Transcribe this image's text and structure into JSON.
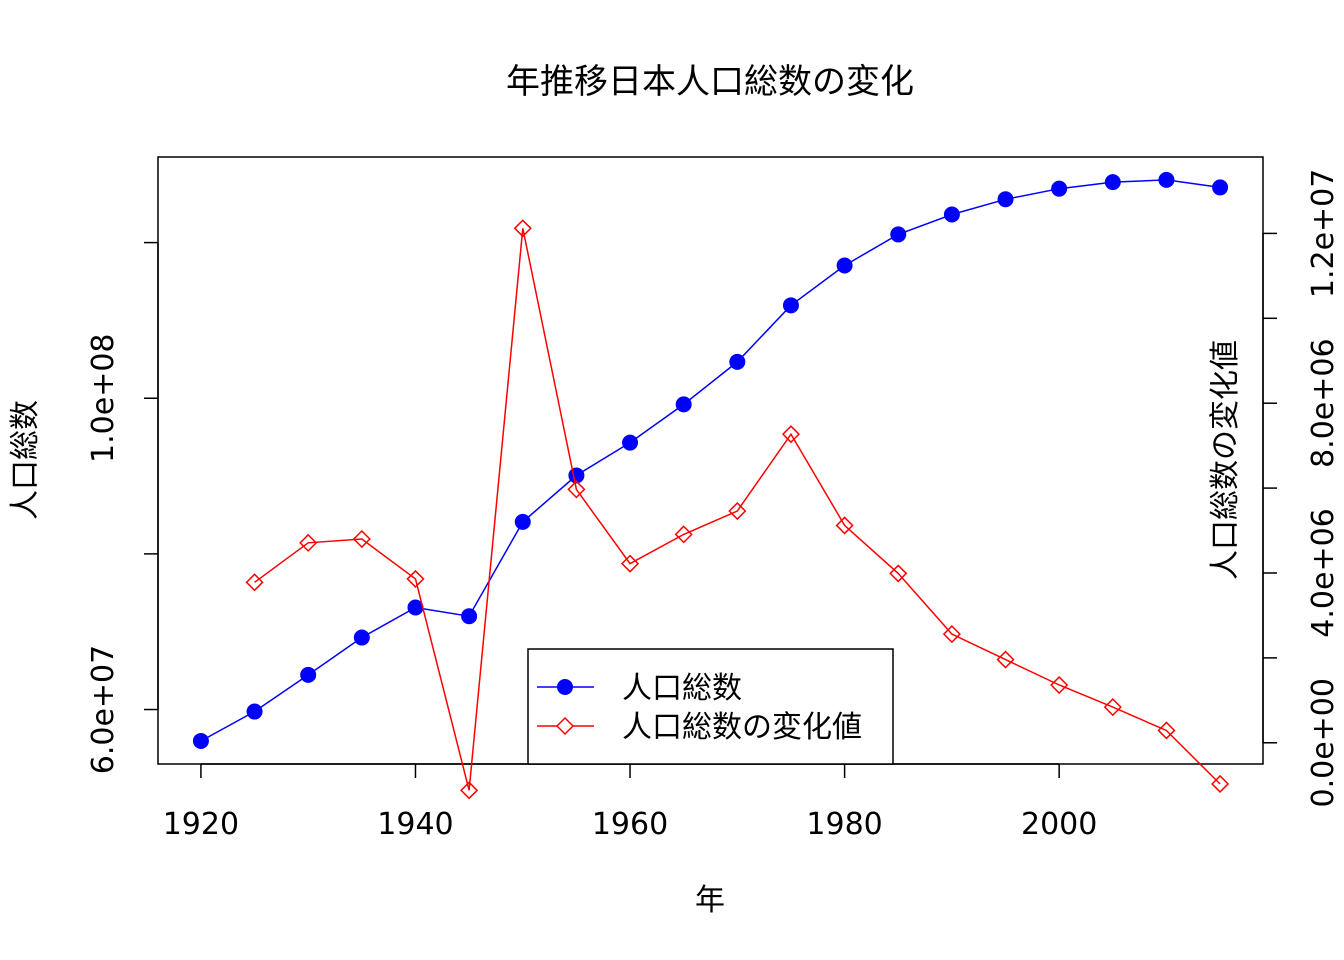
{
  "chart_data": {
    "type": "line",
    "title": "年推移日本人口総数の変化",
    "xlabel": "年",
    "ylabel_left": "人口総数",
    "ylabel_right": "人口総数の変化値",
    "xlim": [
      1916,
      2019
    ],
    "x_ticks": [
      "1920",
      "1940",
      "1960",
      "1980",
      "2000"
    ],
    "ylim_left": [
      53000000,
      131000000
    ],
    "y_ticks_left": [
      {
        "value": 60000000,
        "label": "6.0e+07"
      },
      {
        "value": 80000000,
        "label": ""
      },
      {
        "value": 100000000,
        "label": "1.0e+08"
      },
      {
        "value": 120000000,
        "label": ""
      }
    ],
    "ylim_right": [
      -500000,
      13800000
    ],
    "y_ticks_right": [
      {
        "value": 0,
        "label": "0.0e+00"
      },
      {
        "value": 2000000,
        "label": ""
      },
      {
        "value": 4000000,
        "label": "4.0e+06"
      },
      {
        "value": 6000000,
        "label": ""
      },
      {
        "value": 8000000,
        "label": "8.0e+06"
      },
      {
        "value": 10000000,
        "label": ""
      },
      {
        "value": 12000000,
        "label": "1.2e+07"
      }
    ],
    "series": [
      {
        "name": "人口総数",
        "axis": "left",
        "color": "#0000ff",
        "marker": "filled-circle",
        "x": [
          1920,
          1925,
          1930,
          1935,
          1940,
          1945,
          1950,
          1955,
          1960,
          1965,
          1970,
          1975,
          1980,
          1985,
          1990,
          1995,
          2000,
          2005,
          2010,
          2015
        ],
        "y": [
          55960000,
          59740000,
          64450000,
          69250000,
          73110000,
          71990000,
          84110000,
          90080000,
          94300000,
          99210000,
          104670000,
          111940000,
          117060000,
          121050000,
          123610000,
          125570000,
          126930000,
          127770000,
          128060000,
          127090000
        ]
      },
      {
        "name": "人口総数の変化値",
        "axis": "right",
        "color": "#ff0000",
        "marker": "open-diamond",
        "x": [
          1925,
          1930,
          1935,
          1940,
          1945,
          1950,
          1955,
          1960,
          1965,
          1970,
          1975,
          1980,
          1985,
          1990,
          1995,
          2000,
          2005,
          2010,
          2015
        ],
        "y": [
          3780000,
          4710000,
          4800000,
          3860000,
          -1120000,
          12120000,
          5970000,
          4220000,
          4910000,
          5460000,
          7270000,
          5120000,
          3990000,
          2560000,
          1960000,
          1360000,
          840000,
          290000,
          -970000
        ]
      }
    ],
    "legend": {
      "position": "bottom-center",
      "entries": [
        "人口総数",
        "人口総数の変化値"
      ]
    },
    "grid": false
  }
}
